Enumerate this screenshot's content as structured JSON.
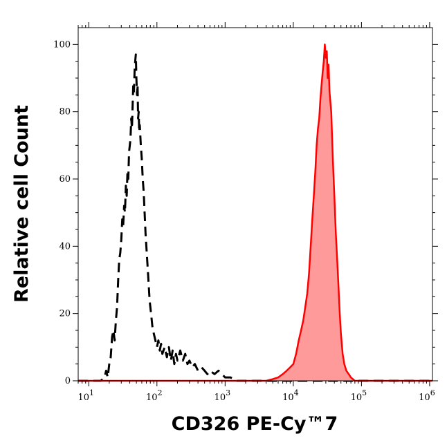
{
  "chart_data": {
    "type": "area",
    "xlabel": "CD326 PE-Cy™7",
    "ylabel": "Relative cell Count",
    "x_scale": "log",
    "xlim": [
      7,
      1100000
    ],
    "ylim": [
      0,
      105
    ],
    "x_ticks": [
      {
        "value": 10,
        "base": "10",
        "exp": "1"
      },
      {
        "value": 100,
        "base": "10",
        "exp": "2"
      },
      {
        "value": 1000,
        "base": "10",
        "exp": "3"
      },
      {
        "value": 10000,
        "base": "10",
        "exp": "4"
      },
      {
        "value": 100000,
        "base": "10",
        "exp": "5"
      },
      {
        "value": 1000000,
        "base": "10",
        "exp": "6"
      }
    ],
    "y_ticks": [
      {
        "value": 0,
        "label": "0"
      },
      {
        "value": 20,
        "label": "20"
      },
      {
        "value": 40,
        "label": "40"
      },
      {
        "value": 60,
        "label": "60"
      },
      {
        "value": 80,
        "label": "80"
      },
      {
        "value": 100,
        "label": "100"
      }
    ],
    "grid": false,
    "series": [
      {
        "style": "dashed",
        "color": "#000000",
        "filled": false,
        "points": [
          [
            7,
            0
          ],
          [
            9,
            0
          ],
          [
            12,
            0
          ],
          [
            15,
            0
          ],
          [
            17,
            1
          ],
          [
            18,
            3
          ],
          [
            19,
            1
          ],
          [
            20,
            5
          ],
          [
            21,
            7
          ],
          [
            22,
            13
          ],
          [
            23,
            15
          ],
          [
            24,
            12
          ],
          [
            25,
            18
          ],
          [
            26,
            22
          ],
          [
            27,
            30
          ],
          [
            28,
            36
          ],
          [
            29,
            38
          ],
          [
            30,
            42
          ],
          [
            31,
            48
          ],
          [
            32,
            46
          ],
          [
            33,
            52
          ],
          [
            34,
            50
          ],
          [
            35,
            58
          ],
          [
            36,
            55
          ],
          [
            37,
            62
          ],
          [
            38,
            60
          ],
          [
            39,
            68
          ],
          [
            40,
            70
          ],
          [
            41,
            72
          ],
          [
            42,
            78
          ],
          [
            43,
            75
          ],
          [
            44,
            82
          ],
          [
            45,
            88
          ],
          [
            46,
            86
          ],
          [
            47,
            92
          ],
          [
            48,
            95
          ],
          [
            49,
            97
          ],
          [
            50,
            90
          ],
          [
            51,
            85
          ],
          [
            52,
            88
          ],
          [
            53,
            78
          ],
          [
            54,
            80
          ],
          [
            55,
            74
          ],
          [
            56,
            76
          ],
          [
            58,
            70
          ],
          [
            60,
            66
          ],
          [
            62,
            60
          ],
          [
            64,
            56
          ],
          [
            66,
            50
          ],
          [
            68,
            44
          ],
          [
            70,
            40
          ],
          [
            72,
            36
          ],
          [
            75,
            30
          ],
          [
            78,
            24
          ],
          [
            82,
            20
          ],
          [
            86,
            16
          ],
          [
            90,
            14
          ],
          [
            95,
            12
          ],
          [
            100,
            10
          ],
          [
            105,
            12
          ],
          [
            110,
            9
          ],
          [
            115,
            11
          ],
          [
            120,
            8
          ],
          [
            130,
            10
          ],
          [
            140,
            7
          ],
          [
            150,
            10
          ],
          [
            160,
            6
          ],
          [
            170,
            9
          ],
          [
            180,
            5
          ],
          [
            190,
            8
          ],
          [
            200,
            6
          ],
          [
            220,
            9
          ],
          [
            240,
            6
          ],
          [
            260,
            8
          ],
          [
            280,
            5
          ],
          [
            300,
            6
          ],
          [
            330,
            4
          ],
          [
            360,
            5
          ],
          [
            400,
            3
          ],
          [
            450,
            4
          ],
          [
            500,
            3
          ],
          [
            550,
            2
          ],
          [
            600,
            3
          ],
          [
            700,
            2
          ],
          [
            800,
            3
          ],
          [
            900,
            2
          ],
          [
            1000,
            1
          ],
          [
            1200,
            1
          ],
          [
            1500,
            0
          ],
          [
            2000,
            0
          ],
          [
            3000,
            0
          ],
          [
            5000,
            0
          ],
          [
            10000,
            0
          ],
          [
            1100000,
            0
          ]
        ]
      },
      {
        "style": "solid",
        "color": "#ff0000",
        "fill": "#ff9a9a",
        "filled": true,
        "points": [
          [
            7,
            0
          ],
          [
            1000,
            0
          ],
          [
            2000,
            0
          ],
          [
            3000,
            0
          ],
          [
            4000,
            0
          ],
          [
            5000,
            0.5
          ],
          [
            6000,
            1
          ],
          [
            7000,
            2
          ],
          [
            8000,
            3
          ],
          [
            9000,
            4
          ],
          [
            10000,
            5
          ],
          [
            11000,
            8
          ],
          [
            12000,
            12
          ],
          [
            13000,
            15
          ],
          [
            14000,
            18
          ],
          [
            15000,
            22
          ],
          [
            16000,
            26
          ],
          [
            17000,
            32
          ],
          [
            18000,
            40
          ],
          [
            19000,
            48
          ],
          [
            20000,
            55
          ],
          [
            21000,
            62
          ],
          [
            22000,
            70
          ],
          [
            23000,
            75
          ],
          [
            24000,
            78
          ],
          [
            25000,
            84
          ],
          [
            26000,
            88
          ],
          [
            27000,
            92
          ],
          [
            28000,
            95
          ],
          [
            29000,
            100
          ],
          [
            30000,
            96
          ],
          [
            31000,
            98
          ],
          [
            32000,
            90
          ],
          [
            33000,
            94
          ],
          [
            34000,
            86
          ],
          [
            36000,
            80
          ],
          [
            38000,
            66
          ],
          [
            40000,
            55
          ],
          [
            42000,
            44
          ],
          [
            44000,
            36
          ],
          [
            46000,
            28
          ],
          [
            48000,
            20
          ],
          [
            50000,
            14
          ],
          [
            53000,
            8
          ],
          [
            56000,
            5
          ],
          [
            60000,
            3
          ],
          [
            65000,
            2
          ],
          [
            70000,
            1
          ],
          [
            80000,
            0
          ],
          [
            100000,
            0
          ],
          [
            200000,
            0
          ],
          [
            500000,
            0
          ],
          [
            1100000,
            0
          ]
        ]
      }
    ]
  },
  "colors": {
    "axis": "#000000",
    "background": "#ffffff",
    "positive_line": "#ff0000",
    "positive_fill": "#ff9a9a",
    "control_line": "#000000"
  }
}
